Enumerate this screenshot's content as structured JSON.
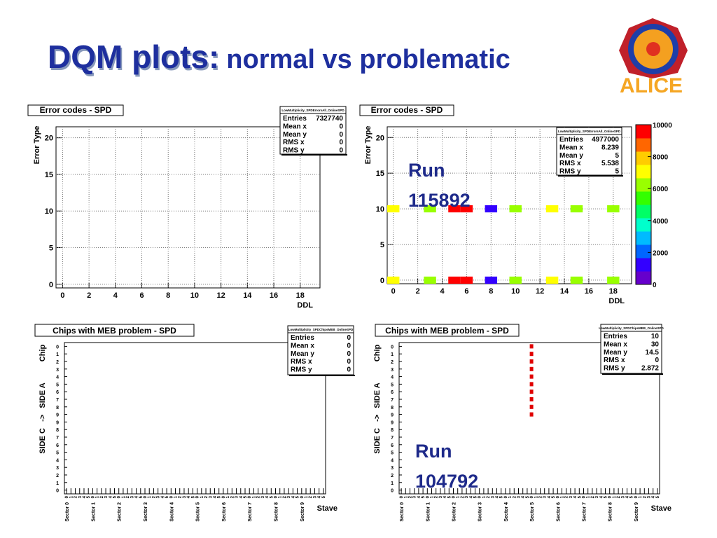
{
  "slide": {
    "title_main": "DQM plots:",
    "title_sub": "normal vs problematic",
    "logo_text": "ALICE"
  },
  "chart_data": [
    {
      "type": "heatmap",
      "title": "Error codes - SPD",
      "xlabel": "DDL",
      "ylabel": "Error Type",
      "xlim": [
        -0.5,
        19.5
      ],
      "ylim": [
        -0.5,
        21.5
      ],
      "xticks": [
        0,
        2,
        4,
        6,
        8,
        10,
        12,
        14,
        16,
        18
      ],
      "yticks": [
        0,
        5,
        10,
        15,
        20
      ],
      "grid": true,
      "stats": {
        "name": "LowMultiplicity_SPDErrorsAll_OnlineSPD",
        "rows": [
          {
            "label": "Entries",
            "value": 7327740
          },
          {
            "label": "Mean x",
            "value": 0
          },
          {
            "label": "Mean y",
            "value": 0
          },
          {
            "label": "RMS x",
            "value": 0
          },
          {
            "label": "RMS y",
            "value": 0
          }
        ]
      },
      "cells": {
        "x": [],
        "y": [],
        "values": []
      }
    },
    {
      "type": "heatmap",
      "title": "Error codes - SPD",
      "xlabel": "DDL",
      "ylabel": "Error Type",
      "xlim": [
        -0.5,
        19.5
      ],
      "ylim": [
        -0.5,
        21.5
      ],
      "xticks": [
        0,
        2,
        4,
        6,
        8,
        10,
        12,
        14,
        16,
        18
      ],
      "yticks": [
        0,
        5,
        10,
        15,
        20
      ],
      "grid": true,
      "stats": {
        "name": "LowMultiplicity_SPDErrorsAll_OnlineSPD",
        "rows": [
          {
            "label": "Entries",
            "value": 4977000
          },
          {
            "label": "Mean x",
            "value": 8.239
          },
          {
            "label": "Mean y",
            "value": 5
          },
          {
            "label": "RMS x",
            "value": 5.538
          },
          {
            "label": "RMS y",
            "value": 5
          }
        ]
      },
      "cells": {
        "x": [
          0,
          3,
          5,
          6,
          8,
          10,
          13,
          15,
          18,
          0,
          3,
          5,
          6,
          8,
          10,
          13,
          15,
          18
        ],
        "y": [
          0,
          0,
          0,
          0,
          0,
          0,
          0,
          0,
          0,
          10,
          10,
          10,
          10,
          10,
          10,
          10,
          10,
          10
        ],
        "values": [
          7200,
          6200,
          9900,
          9900,
          1200,
          6200,
          7200,
          6200,
          6200,
          7200,
          6200,
          9900,
          9900,
          1200,
          6200,
          7200,
          6200,
          6200
        ]
      },
      "zlim": [
        0,
        10000
      ],
      "zticks": [
        0,
        2000,
        4000,
        6000,
        8000,
        10000
      ],
      "palette": [
        "#6600cc",
        "#3300ff",
        "#0066ff",
        "#00bbff",
        "#00ffcc",
        "#00ff66",
        "#33ff00",
        "#99ff00",
        "#ffff00",
        "#ffcc00",
        "#ff6600",
        "#ff0000"
      ],
      "annotation": [
        "Run",
        "115892"
      ]
    },
    {
      "type": "scatter",
      "title": "Chips with MEB problem - SPD",
      "xlabel": "Stave",
      "ylabel": "Chip",
      "side_label": "SIDE C   ->   SIDE A",
      "xlim": [
        -0.5,
        59.5
      ],
      "ylim": [
        -0.5,
        19.5
      ],
      "yticks": [
        0,
        1,
        2,
        3,
        4,
        5,
        6,
        7,
        8,
        9,
        {
          "value": 10,
          "label": "9"
        },
        {
          "value": 11,
          "label": "8"
        },
        {
          "value": 12,
          "label": "7"
        },
        {
          "value": 13,
          "label": "6"
        },
        {
          "value": 14,
          "label": "5"
        },
        {
          "value": 15,
          "label": "4"
        },
        {
          "value": 16,
          "label": "3"
        },
        {
          "value": 17,
          "label": "2"
        },
        {
          "value": 18,
          "label": "1"
        },
        {
          "value": 19,
          "label": "0"
        }
      ],
      "xticks": [
        0,
        1,
        2,
        3,
        4,
        5,
        {
          "value": 6,
          "label": "0"
        },
        {
          "value": 7,
          "label": "1"
        },
        {
          "value": 8,
          "label": "2"
        },
        {
          "value": 9,
          "label": "3"
        },
        {
          "value": 10,
          "label": "4"
        },
        {
          "value": 11,
          "label": "5"
        },
        {
          "value": 12,
          "label": "0"
        },
        {
          "value": 13,
          "label": "1"
        },
        {
          "value": 14,
          "label": "2"
        },
        {
          "value": 15,
          "label": "3"
        },
        {
          "value": 16,
          "label": "4"
        },
        {
          "value": 17,
          "label": "5"
        },
        {
          "value": 18,
          "label": "0"
        },
        {
          "value": 19,
          "label": "1"
        },
        {
          "value": 20,
          "label": "2"
        },
        {
          "value": 21,
          "label": "3"
        },
        {
          "value": 22,
          "label": "4"
        },
        {
          "value": 23,
          "label": "5"
        },
        {
          "value": 24,
          "label": "0"
        },
        {
          "value": 25,
          "label": "1"
        },
        {
          "value": 26,
          "label": "2"
        },
        {
          "value": 27,
          "label": "3"
        },
        {
          "value": 28,
          "label": "4"
        },
        {
          "value": 29,
          "label": "5"
        },
        {
          "value": 30,
          "label": "0"
        },
        {
          "value": 31,
          "label": "1"
        },
        {
          "value": 32,
          "label": "2"
        },
        {
          "value": 33,
          "label": "3"
        },
        {
          "value": 34,
          "label": "4"
        },
        {
          "value": 35,
          "label": "5"
        },
        {
          "value": 36,
          "label": "0"
        },
        {
          "value": 37,
          "label": "1"
        },
        {
          "value": 38,
          "label": "2"
        },
        {
          "value": 39,
          "label": "3"
        },
        {
          "value": 40,
          "label": "4"
        },
        {
          "value": 41,
          "label": "5"
        },
        {
          "value": 42,
          "label": "0"
        },
        {
          "value": 43,
          "label": "1"
        },
        {
          "value": 44,
          "label": "2"
        },
        {
          "value": 45,
          "label": "3"
        },
        {
          "value": 46,
          "label": "4"
        },
        {
          "value": 47,
          "label": "5"
        },
        {
          "value": 48,
          "label": "0"
        },
        {
          "value": 49,
          "label": "1"
        },
        {
          "value": 50,
          "label": "2"
        },
        {
          "value": 51,
          "label": "3"
        },
        {
          "value": 52,
          "label": "4"
        },
        {
          "value": 53,
          "label": "5"
        },
        {
          "value": 54,
          "label": "0"
        },
        {
          "value": 55,
          "label": "1"
        },
        {
          "value": 56,
          "label": "2"
        },
        {
          "value": 57,
          "label": "3"
        },
        {
          "value": 58,
          "label": "4"
        },
        {
          "value": 59,
          "label": "5"
        }
      ],
      "sector_ticks": [
        {
          "value": 0,
          "label": "Sector 0"
        },
        {
          "value": 6,
          "label": "Sector 1"
        },
        {
          "value": 12,
          "label": "Sector 2"
        },
        {
          "value": 18,
          "label": "Sector 3"
        },
        {
          "value": 24,
          "label": "Sector 4"
        },
        {
          "value": 30,
          "label": "Sector 5"
        },
        {
          "value": 36,
          "label": "Sector 6"
        },
        {
          "value": 42,
          "label": "Sector 7"
        },
        {
          "value": 48,
          "label": "Sector 8"
        },
        {
          "value": 54,
          "label": "Sector 9"
        }
      ],
      "stats": {
        "name": "LowMultiplicity_SPDChipsMEB_OnlineSPD",
        "rows": [
          {
            "label": "Entries",
            "value": 0
          },
          {
            "label": "Mean x",
            "value": 0
          },
          {
            "label": "Mean y",
            "value": 0
          },
          {
            "label": "RMS x",
            "value": 0
          },
          {
            "label": "RMS y",
            "value": 0
          }
        ]
      },
      "color": "#e00000",
      "points": {
        "x": [],
        "y": []
      }
    },
    {
      "type": "scatter",
      "title": "Chips with MEB problem - SPD",
      "xlabel": "Stave",
      "ylabel": "Chip",
      "side_label": "SIDE C   ->   SIDE A",
      "xlim": [
        -0.5,
        59.5
      ],
      "ylim": [
        -0.5,
        19.5
      ],
      "yticks": [
        0,
        1,
        2,
        3,
        4,
        5,
        6,
        7,
        8,
        9,
        {
          "value": 10,
          "label": "9"
        },
        {
          "value": 11,
          "label": "8"
        },
        {
          "value": 12,
          "label": "7"
        },
        {
          "value": 13,
          "label": "6"
        },
        {
          "value": 14,
          "label": "5"
        },
        {
          "value": 15,
          "label": "4"
        },
        {
          "value": 16,
          "label": "3"
        },
        {
          "value": 17,
          "label": "2"
        },
        {
          "value": 18,
          "label": "1"
        },
        {
          "value": 19,
          "label": "0"
        }
      ],
      "xticks": [
        0,
        1,
        2,
        3,
        4,
        5,
        {
          "value": 6,
          "label": "0"
        },
        {
          "value": 7,
          "label": "1"
        },
        {
          "value": 8,
          "label": "2"
        },
        {
          "value": 9,
          "label": "3"
        },
        {
          "value": 10,
          "label": "4"
        },
        {
          "value": 11,
          "label": "5"
        },
        {
          "value": 12,
          "label": "0"
        },
        {
          "value": 13,
          "label": "1"
        },
        {
          "value": 14,
          "label": "2"
        },
        {
          "value": 15,
          "label": "3"
        },
        {
          "value": 16,
          "label": "4"
        },
        {
          "value": 17,
          "label": "5"
        },
        {
          "value": 18,
          "label": "0"
        },
        {
          "value": 19,
          "label": "1"
        },
        {
          "value": 20,
          "label": "2"
        },
        {
          "value": 21,
          "label": "3"
        },
        {
          "value": 22,
          "label": "4"
        },
        {
          "value": 23,
          "label": "5"
        },
        {
          "value": 24,
          "label": "0"
        },
        {
          "value": 25,
          "label": "1"
        },
        {
          "value": 26,
          "label": "2"
        },
        {
          "value": 27,
          "label": "3"
        },
        {
          "value": 28,
          "label": "4"
        },
        {
          "value": 29,
          "label": "5"
        },
        {
          "value": 30,
          "label": "0"
        },
        {
          "value": 31,
          "label": "1"
        },
        {
          "value": 32,
          "label": "2"
        },
        {
          "value": 33,
          "label": "3"
        },
        {
          "value": 34,
          "label": "4"
        },
        {
          "value": 35,
          "label": "5"
        },
        {
          "value": 36,
          "label": "0"
        },
        {
          "value": 37,
          "label": "1"
        },
        {
          "value": 38,
          "label": "2"
        },
        {
          "value": 39,
          "label": "3"
        },
        {
          "value": 40,
          "label": "4"
        },
        {
          "value": 41,
          "label": "5"
        },
        {
          "value": 42,
          "label": "0"
        },
        {
          "value": 43,
          "label": "1"
        },
        {
          "value": 44,
          "label": "2"
        },
        {
          "value": 45,
          "label": "3"
        },
        {
          "value": 46,
          "label": "4"
        },
        {
          "value": 47,
          "label": "5"
        },
        {
          "value": 48,
          "label": "0"
        },
        {
          "value": 49,
          "label": "1"
        },
        {
          "value": 50,
          "label": "2"
        },
        {
          "value": 51,
          "label": "3"
        },
        {
          "value": 52,
          "label": "4"
        },
        {
          "value": 53,
          "label": "5"
        },
        {
          "value": 54,
          "label": "0"
        },
        {
          "value": 55,
          "label": "1"
        },
        {
          "value": 56,
          "label": "2"
        },
        {
          "value": 57,
          "label": "3"
        },
        {
          "value": 58,
          "label": "4"
        },
        {
          "value": 59,
          "label": "5"
        }
      ],
      "sector_ticks": [
        {
          "value": 0,
          "label": "Sector 0"
        },
        {
          "value": 6,
          "label": "Sector 1"
        },
        {
          "value": 12,
          "label": "Sector 2"
        },
        {
          "value": 18,
          "label": "Sector 3"
        },
        {
          "value": 24,
          "label": "Sector 4"
        },
        {
          "value": 30,
          "label": "Sector 5"
        },
        {
          "value": 36,
          "label": "Sector 6"
        },
        {
          "value": 42,
          "label": "Sector 7"
        },
        {
          "value": 48,
          "label": "Sector 8"
        },
        {
          "value": 54,
          "label": "Sector 9"
        }
      ],
      "stats": {
        "name": "LowMultiplicity_SPDChipsMEB_OnlineSPD",
        "rows": [
          {
            "label": "Entries",
            "value": 10
          },
          {
            "label": "Mean x",
            "value": 30
          },
          {
            "label": "Mean y",
            "value": 14.5
          },
          {
            "label": "RMS x",
            "value": 0
          },
          {
            "label": "RMS y",
            "value": 2.872
          }
        ]
      },
      "color": "#e00000",
      "points": {
        "x": [
          30,
          30,
          30,
          30,
          30,
          30,
          30,
          30,
          30,
          30
        ],
        "y": [
          10,
          11,
          12,
          13,
          14,
          15,
          16,
          17,
          18,
          19
        ]
      },
      "annotation": [
        "Run",
        "104792"
      ]
    }
  ]
}
